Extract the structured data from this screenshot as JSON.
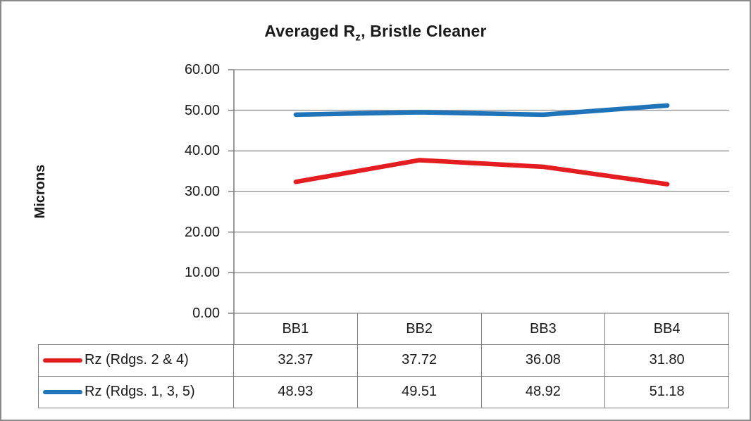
{
  "chart_data": {
    "type": "line",
    "title": {
      "prefix": "Averaged R",
      "subscript": "z",
      "suffix": ", Bristle Cleaner"
    },
    "ylabel": "Microns",
    "xlabel": "",
    "categories": [
      "BB1",
      "BB2",
      "BB3",
      "BB4"
    ],
    "series": [
      {
        "name": "Rz (Rdgs. 2 & 4)",
        "color": "#e41e20",
        "values": [
          32.37,
          37.72,
          36.08,
          31.8
        ]
      },
      {
        "name": "Rz (Rdgs. 1, 3, 5)",
        "color": "#1e73b9",
        "values": [
          48.93,
          49.51,
          48.92,
          51.18
        ]
      }
    ],
    "ylim": [
      0,
      60
    ],
    "ytick_step": 10,
    "yticks": [
      "60.00",
      "50.00",
      "40.00",
      "30.00",
      "20.00",
      "10.00",
      "0.00"
    ],
    "grid": true,
    "gridline_color": "#9b9b9b",
    "axis_color": "#7f7f7f",
    "legend_position": "bottom-table-left"
  },
  "table": {
    "column_headers": [
      "BB1",
      "BB2",
      "BB3",
      "BB4"
    ],
    "rows": [
      {
        "label": "Rz (Rdgs. 2 & 4)",
        "swatch_color": "#e41e20",
        "values": [
          "32.37",
          "37.72",
          "36.08",
          "31.80"
        ]
      },
      {
        "label": "Rz (Rdgs. 1, 3, 5)",
        "swatch_color": "#1e73b9",
        "values": [
          "48.93",
          "49.51",
          "48.92",
          "51.18"
        ]
      }
    ]
  }
}
